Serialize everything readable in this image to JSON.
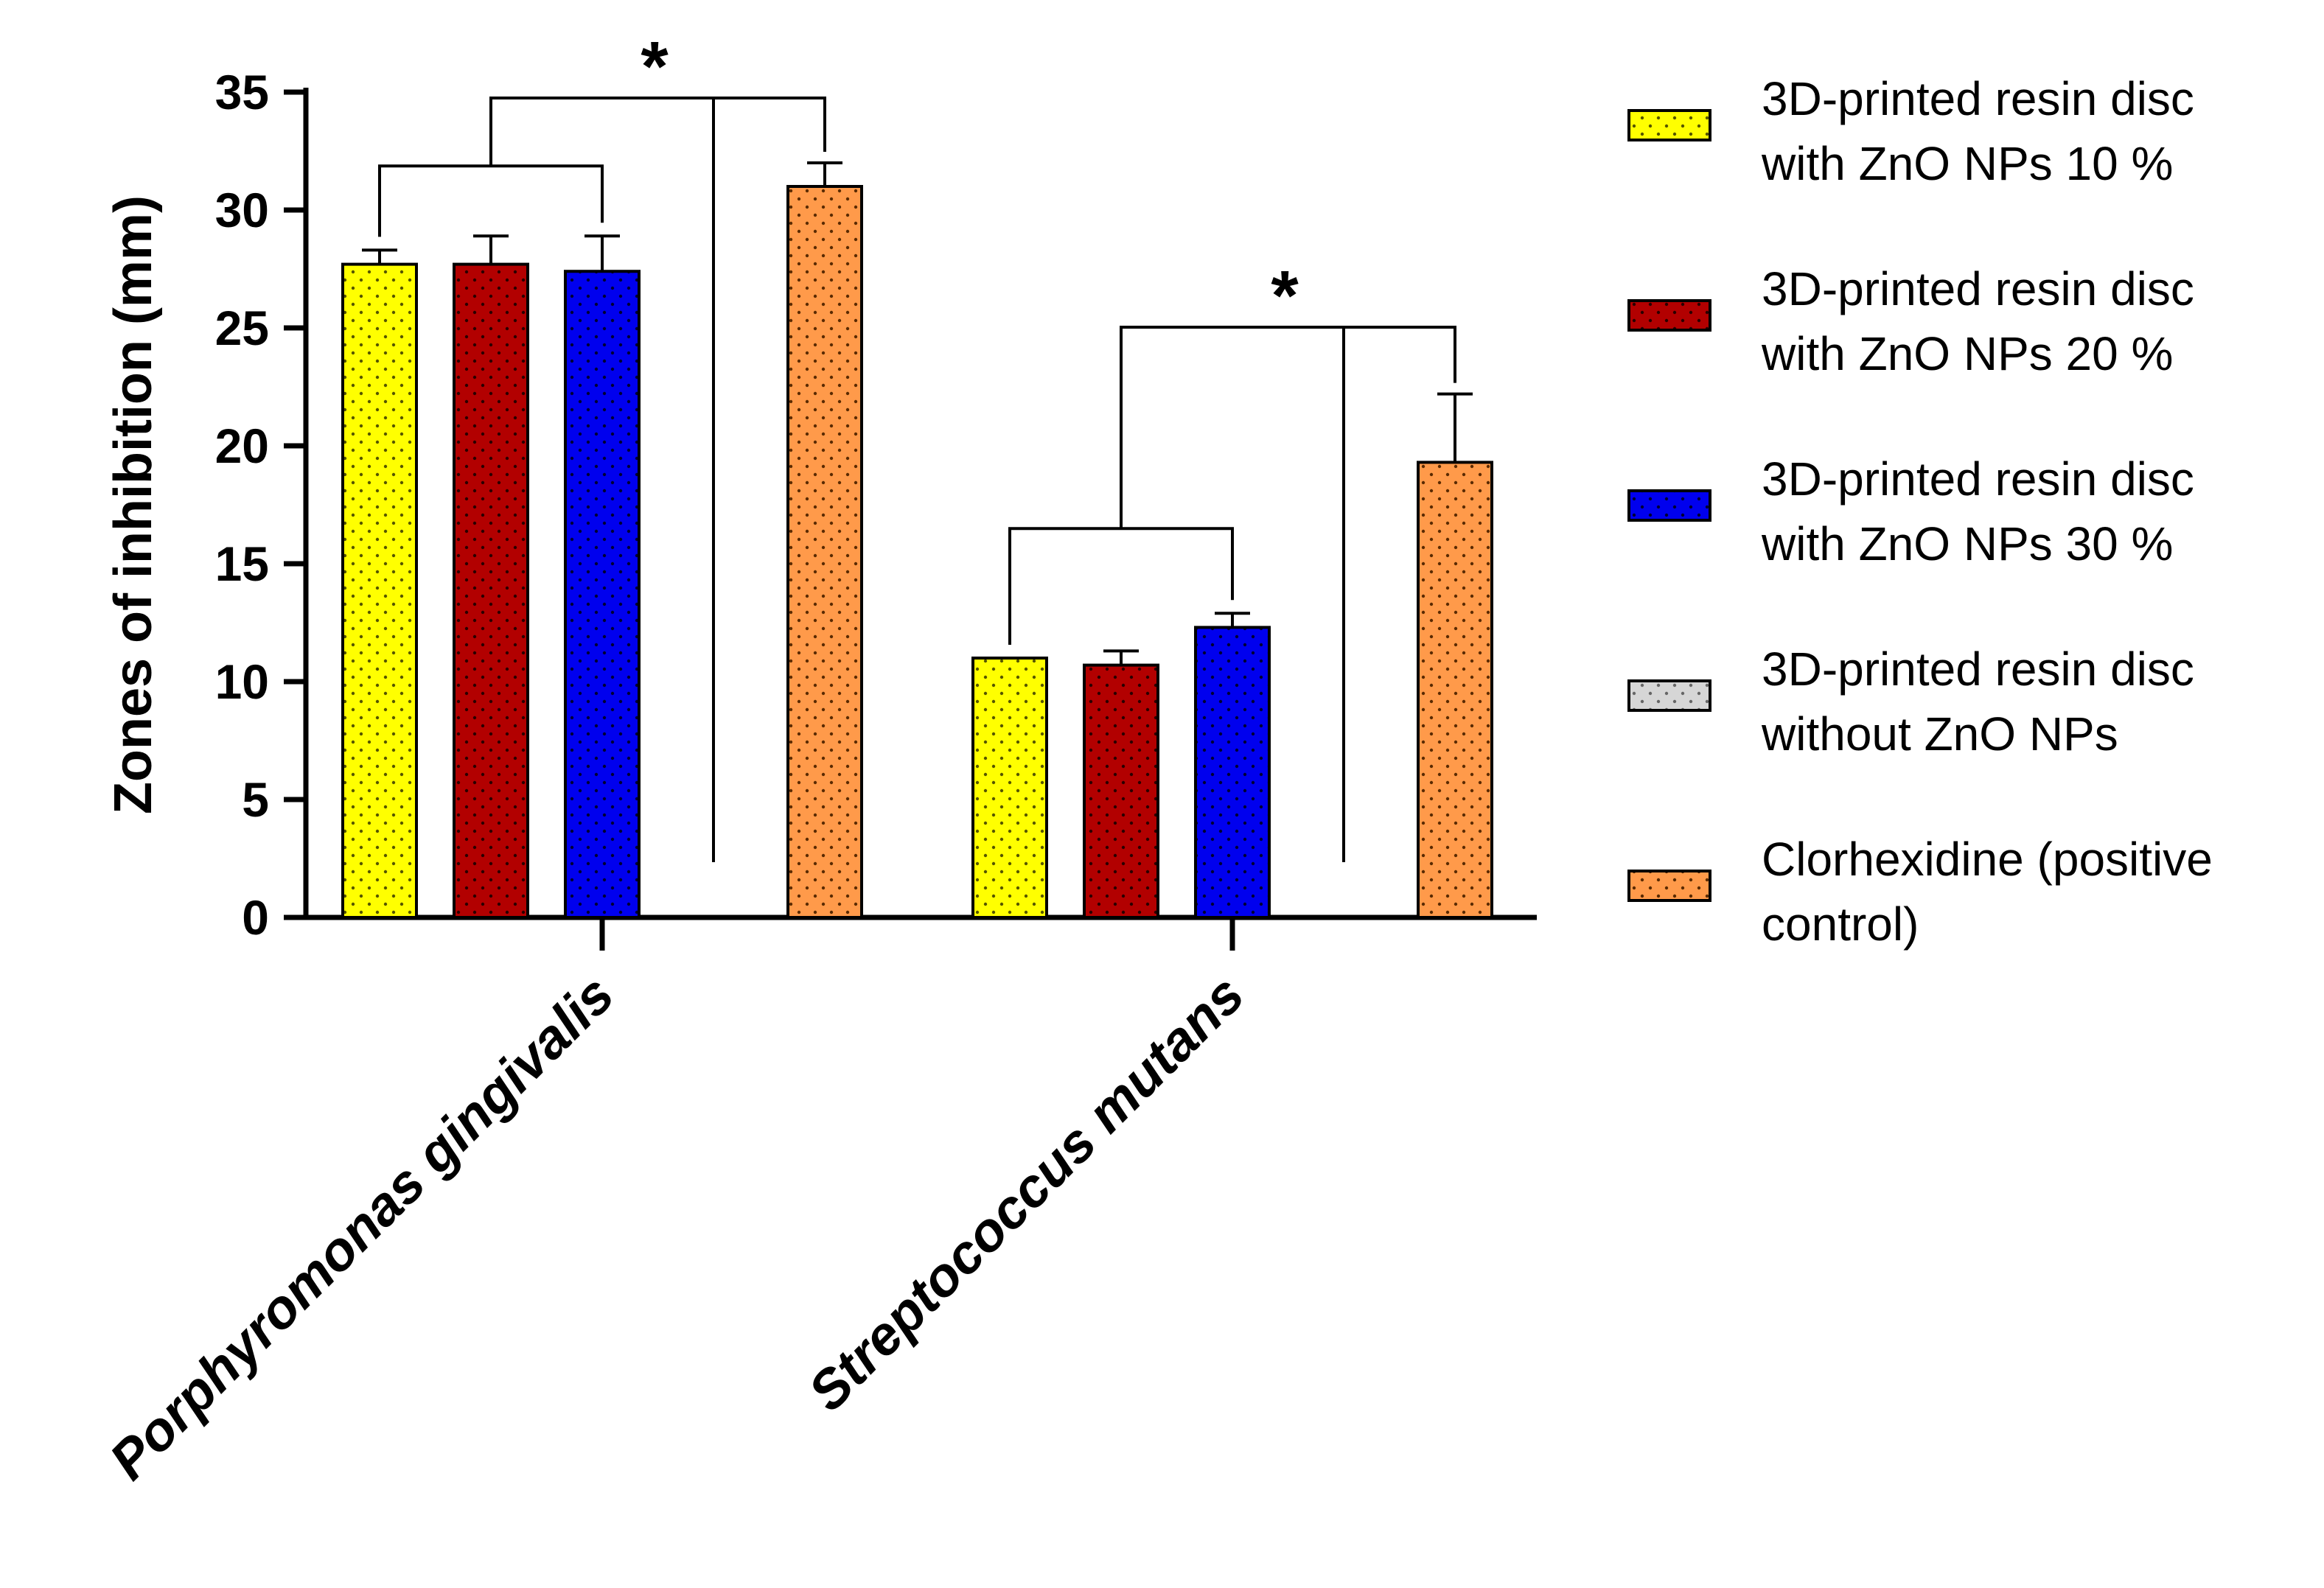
{
  "chart_data": {
    "type": "bar",
    "ylabel": "Zones of inhibition (mm)",
    "ylim": [
      0,
      35
    ],
    "yticks": [
      0,
      5,
      10,
      15,
      20,
      25,
      30,
      35
    ],
    "categories": [
      "Porphyromonas gingivalis",
      "Streptococcus mutans"
    ],
    "series": [
      {
        "name": "3D-printed resin disc with ZnO NPs 10 %",
        "legend_lines": [
          "3D-printed resin disc",
          "with ZnO NPs 10 %"
        ],
        "color": "#ffff00",
        "dot_color": "#555500",
        "values": [
          27.7,
          11.0
        ],
        "errors": [
          0.6,
          0.0
        ]
      },
      {
        "name": "3D-printed resin disc with ZnO NPs 20 %",
        "legend_lines": [
          "3D-printed resin disc",
          "with ZnO NPs 20 %"
        ],
        "color": "#b20000",
        "dot_color": "#2a0000",
        "values": [
          27.7,
          10.7
        ],
        "errors": [
          1.2,
          0.6
        ]
      },
      {
        "name": "3D-printed resin disc with ZnO NPs 30 %",
        "legend_lines": [
          "3D-printed resin disc",
          "with ZnO NPs 30 %"
        ],
        "color": "#0000ee",
        "dot_color": "#000033",
        "values": [
          27.4,
          12.3
        ],
        "errors": [
          1.5,
          0.6
        ]
      },
      {
        "name": "3D-printed resin disc without ZnO NPs",
        "legend_lines": [
          "3D-printed resin disc",
          "without ZnO NPs"
        ],
        "color": "#d6d6d6",
        "dot_color": "#666666",
        "values": [
          0,
          0
        ],
        "errors": [
          0,
          0
        ]
      },
      {
        "name": "Clorhexidine (positive control)",
        "legend_lines": [
          "Clorhexidine (positive",
          "control)"
        ],
        "color": "#ff9a4a",
        "dot_color": "#5a2a00",
        "values": [
          31.0,
          19.3
        ],
        "errors": [
          1.0,
          2.9
        ]
      }
    ],
    "significance": [
      {
        "category": 0,
        "label": "*"
      },
      {
        "category": 1,
        "label": "*"
      }
    ],
    "legend_position": "right"
  }
}
